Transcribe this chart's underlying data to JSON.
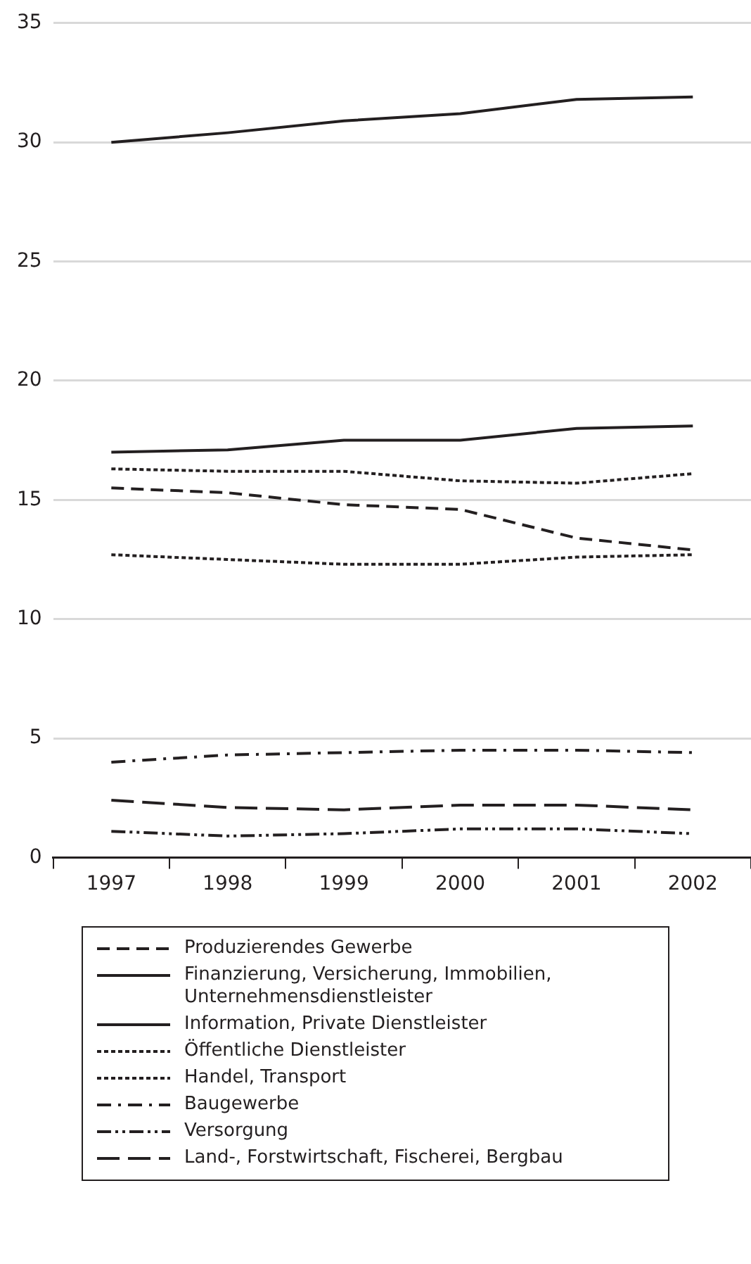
{
  "chart_data": {
    "type": "line",
    "categories": [
      "1997",
      "1998",
      "1999",
      "2000",
      "2001",
      "2002"
    ],
    "ylim": [
      0,
      35
    ],
    "yticks": [
      0,
      5,
      10,
      15,
      20,
      25,
      30,
      35
    ],
    "grid": "y",
    "legend": "bottom",
    "marker": "none",
    "series": [
      {
        "name": "Produzierendes Gewerbe",
        "color": "#231f20",
        "line_style": "dashed",
        "values": [
          15.5,
          15.3,
          14.8,
          14.6,
          13.4,
          12.9
        ]
      },
      {
        "name": "Finanzierung, Versicherung, Immobilien, Unternehmensdienstleister",
        "color": "#231f20",
        "line_style": "solid",
        "values": [
          30.0,
          30.4,
          30.9,
          31.2,
          31.8,
          31.9
        ]
      },
      {
        "name": "Information, Private Dienstleister",
        "color": "#231f20",
        "line_style": "solid",
        "values": [
          17.0,
          17.1,
          17.5,
          17.5,
          18.0,
          18.1
        ]
      },
      {
        "name": "Öffentliche Dienstleister",
        "color": "#231f20",
        "line_style": "dotted",
        "values": [
          12.7,
          12.5,
          12.3,
          12.3,
          12.6,
          12.7
        ]
      },
      {
        "name": "Handel, Transport",
        "color": "#231f20",
        "line_style": "dotted",
        "values": [
          16.3,
          16.2,
          16.2,
          15.8,
          15.7,
          16.1
        ]
      },
      {
        "name": "Baugewerbe",
        "color": "#231f20",
        "line_style": "dashdot",
        "values": [
          4.0,
          4.3,
          4.4,
          4.5,
          4.5,
          4.4
        ]
      },
      {
        "name": "Versorgung",
        "color": "#231f20",
        "line_style": "dashdotdot",
        "values": [
          1.1,
          0.9,
          1.0,
          1.2,
          1.2,
          1.0
        ]
      },
      {
        "name": "Land-, Forstwirtschaft, Fischerei, Bergbau",
        "color": "#231f20",
        "line_style": "longdash",
        "values": [
          2.4,
          2.1,
          2.0,
          2.2,
          2.2,
          2.0
        ]
      }
    ]
  }
}
